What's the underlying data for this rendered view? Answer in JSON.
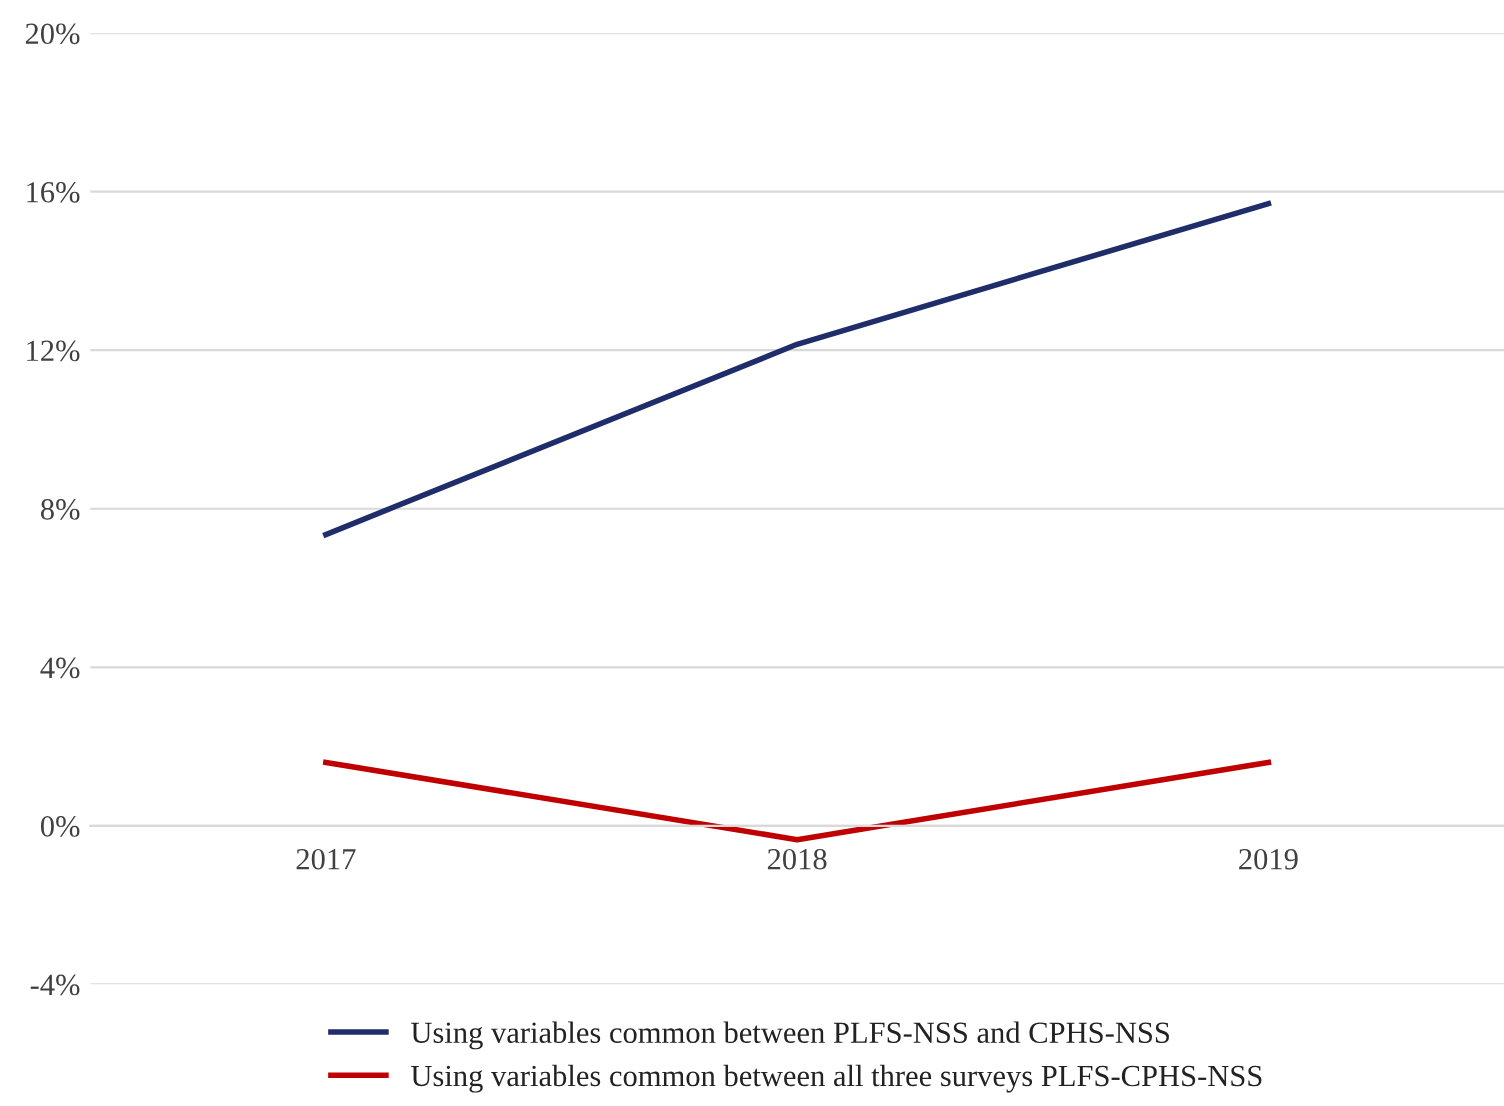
{
  "chart_data": {
    "type": "line",
    "categories": [
      "2017",
      "2018",
      "2019"
    ],
    "series": [
      {
        "name": "Using variables common between PLFS-NSS and CPHS-NSS",
        "color": "#1f2d6b",
        "values": [
          7.35,
          12.15,
          15.7
        ]
      },
      {
        "name": "Using variables common between all three surveys PLFS-CPHS-NSS",
        "color": "#c00000",
        "values": [
          1.6,
          -0.35,
          1.6
        ]
      }
    ],
    "ylim": [
      -4,
      20
    ],
    "yticks": [
      {
        "value": -4,
        "label": "-4%"
      },
      {
        "value": 0,
        "label": "0%"
      },
      {
        "value": 4,
        "label": "4%"
      },
      {
        "value": 8,
        "label": "8%"
      },
      {
        "value": 12,
        "label": "12%"
      },
      {
        "value": 16,
        "label": "16%"
      },
      {
        "value": 20,
        "label": "20%"
      }
    ],
    "grid": "y",
    "legend": "bottom",
    "marker": "none",
    "line_style": "solid"
  }
}
